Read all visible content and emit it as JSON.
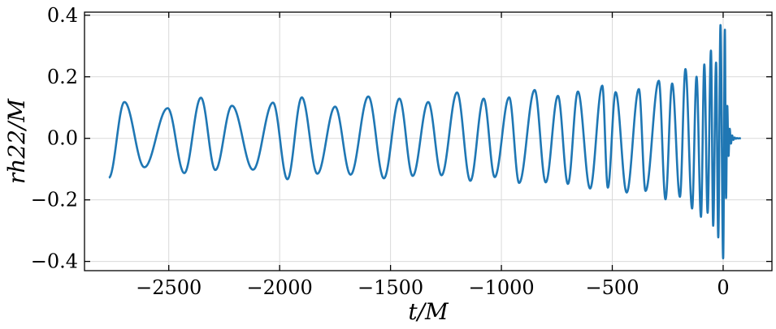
{
  "chart_data": {
    "type": "line",
    "title": "",
    "xlabel": "t/M",
    "ylabel": "rh22/M",
    "xlim": [
      -2880,
      220
    ],
    "ylim": [
      -0.43,
      0.41
    ],
    "grid": true,
    "x_ticks": [
      -2500,
      -2000,
      -1500,
      -1000,
      -500,
      0
    ],
    "x_tick_labels": [
      "−2500",
      "−2000",
      "−1500",
      "−1000",
      "−500",
      "0"
    ],
    "y_ticks": [
      -0.4,
      -0.2,
      0.0,
      0.2,
      0.4
    ],
    "y_tick_labels": [
      "−0.4",
      "−0.2",
      "0.0",
      "0.2",
      "0.4"
    ],
    "series": [
      {
        "color": "#1f77b4",
        "t_start": -2770,
        "t_end": 80,
        "peak_time": 0,
        "peaks": [
          [
            -2700,
            0.118
          ],
          [
            -2505,
            0.098
          ],
          [
            -2355,
            0.132
          ],
          [
            -2215,
            0.106
          ],
          [
            -2030,
            0.116
          ],
          [
            -1900,
            0.133
          ],
          [
            -1750,
            0.103
          ],
          [
            -1600,
            0.136
          ],
          [
            -1460,
            0.129
          ],
          [
            -1330,
            0.118
          ],
          [
            -1200,
            0.149
          ],
          [
            -1080,
            0.129
          ],
          [
            -965,
            0.133
          ],
          [
            -850,
            0.157
          ],
          [
            -745,
            0.138
          ],
          [
            -655,
            0.152
          ],
          [
            -545,
            0.171
          ],
          [
            -485,
            0.15
          ],
          [
            -380,
            0.16
          ],
          [
            -290,
            0.187
          ],
          [
            -230,
            0.178
          ],
          [
            -170,
            0.225
          ],
          [
            -120,
            0.2
          ],
          [
            -85,
            0.24
          ],
          [
            -55,
            0.285
          ],
          [
            -32,
            0.246
          ],
          [
            -12,
            0.368
          ],
          [
            8,
            0.353
          ]
        ],
        "troughs": [
          [
            -2770,
            -0.128
          ],
          [
            -2610,
            -0.094
          ],
          [
            -2430,
            -0.113
          ],
          [
            -2290,
            -0.103
          ],
          [
            -2120,
            -0.102
          ],
          [
            -1965,
            -0.133
          ],
          [
            -1830,
            -0.115
          ],
          [
            -1680,
            -0.118
          ],
          [
            -1530,
            -0.13
          ],
          [
            -1400,
            -0.122
          ],
          [
            -1270,
            -0.12
          ],
          [
            -1140,
            -0.138
          ],
          [
            -1030,
            -0.126
          ],
          [
            -920,
            -0.145
          ],
          [
            -800,
            -0.143
          ],
          [
            -700,
            -0.148
          ],
          [
            -600,
            -0.163
          ],
          [
            -520,
            -0.16
          ],
          [
            -435,
            -0.176
          ],
          [
            -350,
            -0.171
          ],
          [
            -260,
            -0.198
          ],
          [
            -195,
            -0.19
          ],
          [
            -140,
            -0.228
          ],
          [
            -100,
            -0.255
          ],
          [
            -70,
            -0.242
          ],
          [
            -45,
            -0.284
          ],
          [
            -22,
            -0.322
          ],
          [
            0,
            -0.39
          ]
        ]
      }
    ]
  }
}
